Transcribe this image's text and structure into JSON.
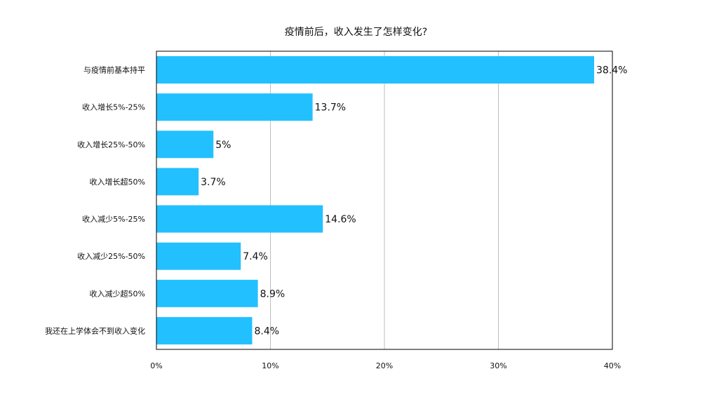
{
  "chart_data": {
    "type": "bar",
    "orientation": "horizontal",
    "title": "疫情前后，收入发生了怎样变化?",
    "xlabel": "",
    "ylabel": "",
    "categories": [
      "与疫情前基本持平",
      "收入增长5%-25%",
      "收入增长25%-50%",
      "收入增长超50%",
      "收入减少5%-25%",
      "收入减少25%-50%",
      "收入减少超50%",
      "我还在上学体会不到收入变化"
    ],
    "values": [
      38.4,
      13.7,
      5,
      3.7,
      14.6,
      7.4,
      8.9,
      8.4
    ],
    "value_labels": [
      "38.4%",
      "13.7%",
      "5%",
      "3.7%",
      "14.6%",
      "7.4%",
      "8.9%",
      "8.4%"
    ],
    "xlim": [
      0,
      40
    ],
    "x_ticks": [
      0,
      10,
      20,
      30,
      40
    ],
    "x_tick_labels": [
      "0%",
      "10%",
      "20%",
      "30%",
      "40%"
    ],
    "grid": "vertical",
    "legend": "none",
    "colors": {
      "bar": "#22c0ff",
      "grid": "#bdbdbd",
      "frame": "#000000",
      "text": "#111111"
    }
  }
}
